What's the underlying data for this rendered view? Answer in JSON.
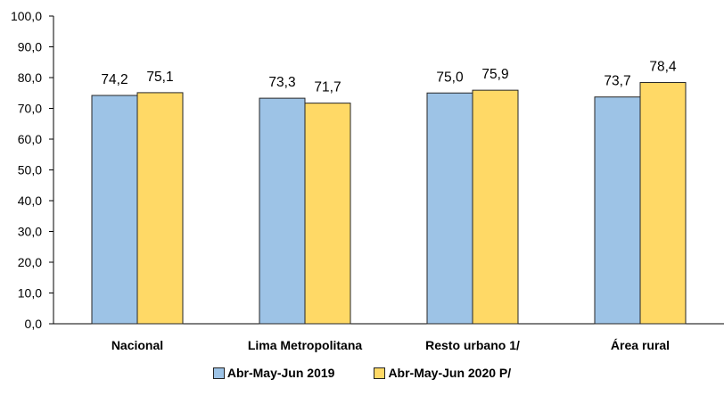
{
  "chart_data": {
    "type": "bar",
    "categories": [
      "Nacional",
      "Lima Metropolitana",
      "Resto urbano 1/",
      "Área rural"
    ],
    "series": [
      {
        "name": "Abr-May-Jun 2019",
        "values": [
          74.2,
          73.3,
          75.0,
          73.7
        ],
        "labels": [
          "74,2",
          "73,3",
          "75,0",
          "73,7"
        ],
        "color": "#9dc3e6"
      },
      {
        "name": "Abr-May-Jun 2020 P/",
        "values": [
          75.1,
          71.7,
          75.9,
          78.4
        ],
        "labels": [
          "75,1",
          "71,7",
          "75,9",
          "78,4"
        ],
        "color": "#ffd966"
      }
    ],
    "ylim": [
      0,
      100
    ],
    "yticks": [
      "0,0",
      "10,0",
      "20,0",
      "30,0",
      "40,0",
      "50,0",
      "60,0",
      "70,0",
      "80,0",
      "90,0",
      "100,0"
    ],
    "ytick_step": 10,
    "grid": false,
    "legend_position": "bottom",
    "bar_border_color": "#262626"
  }
}
